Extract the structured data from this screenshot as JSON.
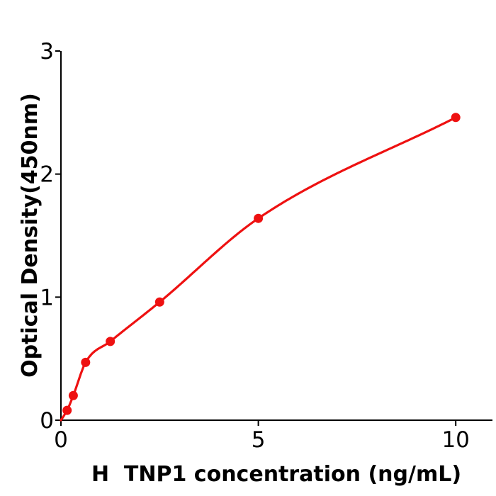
{
  "figure": {
    "background_color": "#ffffff"
  },
  "chart_data": {
    "type": "scatter",
    "subtype": "scatter-with-fitted-curve",
    "title": "",
    "xlabel": "H  TNP1 concentration (ng/mL)",
    "ylabel": "Optical Density(450nm)",
    "xlim": [
      0,
      10.93
    ],
    "ylim": [
      0,
      3
    ],
    "x_ticks": [
      0,
      5,
      10
    ],
    "y_ticks": [
      0,
      1,
      2,
      3
    ],
    "grid": false,
    "legend_position": "none",
    "axis_color": "#000000",
    "series": [
      {
        "name": "standard-curve",
        "color": "#ee1111",
        "marker": "filled-circle",
        "x": [
          0.156,
          0.3125,
          0.625,
          1.25,
          2.5,
          5,
          10
        ],
        "y": [
          0.08,
          0.2,
          0.47,
          0.64,
          0.96,
          1.64,
          2.46
        ],
        "fit_curve": {
          "style": "smooth",
          "starts_at": {
            "x": 0,
            "y": 0
          },
          "ends_at": {
            "x": 10,
            "y": 2.46
          }
        }
      }
    ]
  }
}
